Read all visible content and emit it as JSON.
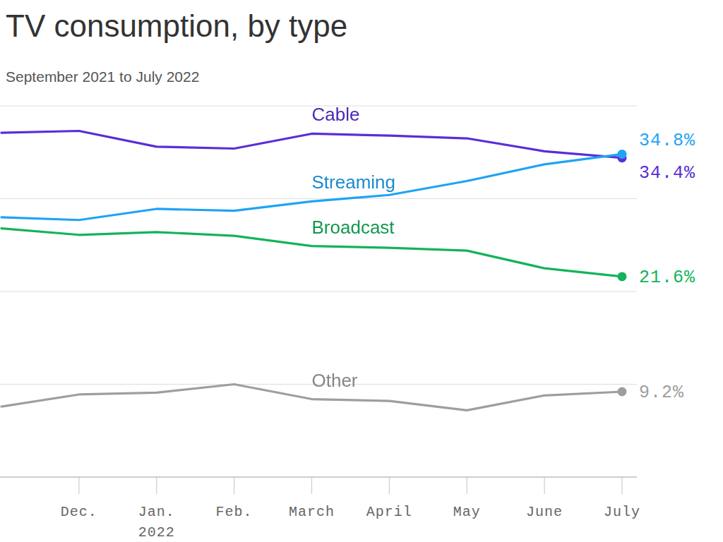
{
  "chart_data": {
    "type": "line",
    "title": "TV consumption, by type",
    "subtitle": "September 2021 to July 2022",
    "categories": [
      null,
      "Dec.",
      "Jan.\n2022",
      "Feb.",
      "March",
      "April",
      "May",
      "June",
      "July"
    ],
    "ylim": [
      0,
      40
    ],
    "yticks": [
      0,
      10,
      20,
      30,
      40
    ],
    "grid": true,
    "tick_labels": "x",
    "data_labels": true,
    "series": [
      {
        "name": "Cable",
        "color": "#5a2ed6",
        "values": [
          37.1,
          37.3,
          35.6,
          35.4,
          37.0,
          36.8,
          36.5,
          35.1,
          34.4
        ],
        "value_labels": [
          null,
          null,
          null,
          null,
          null,
          null,
          null,
          null,
          "34.4%"
        ]
      },
      {
        "name": "Streaming",
        "color": "#1fa3f5",
        "values": [
          28.0,
          27.7,
          28.9,
          28.7,
          29.7,
          30.4,
          31.9,
          33.7,
          34.8
        ],
        "value_labels": [
          null,
          null,
          null,
          null,
          null,
          null,
          null,
          null,
          "34.8%"
        ]
      },
      {
        "name": "Broadcast",
        "color": "#14b35a",
        "values": [
          26.8,
          26.1,
          26.4,
          26.0,
          24.9,
          24.7,
          24.4,
          22.5,
          21.6
        ],
        "value_labels": [
          null,
          null,
          null,
          null,
          null,
          null,
          null,
          null,
          "21.6%"
        ]
      },
      {
        "name": "Other",
        "color": "#9e9e9e",
        "values": [
          7.6,
          8.9,
          9.1,
          10.0,
          8.4,
          8.2,
          7.2,
          8.8,
          9.2
        ],
        "value_labels": [
          null,
          null,
          null,
          null,
          null,
          null,
          null,
          null,
          "9.2%"
        ]
      }
    ]
  }
}
